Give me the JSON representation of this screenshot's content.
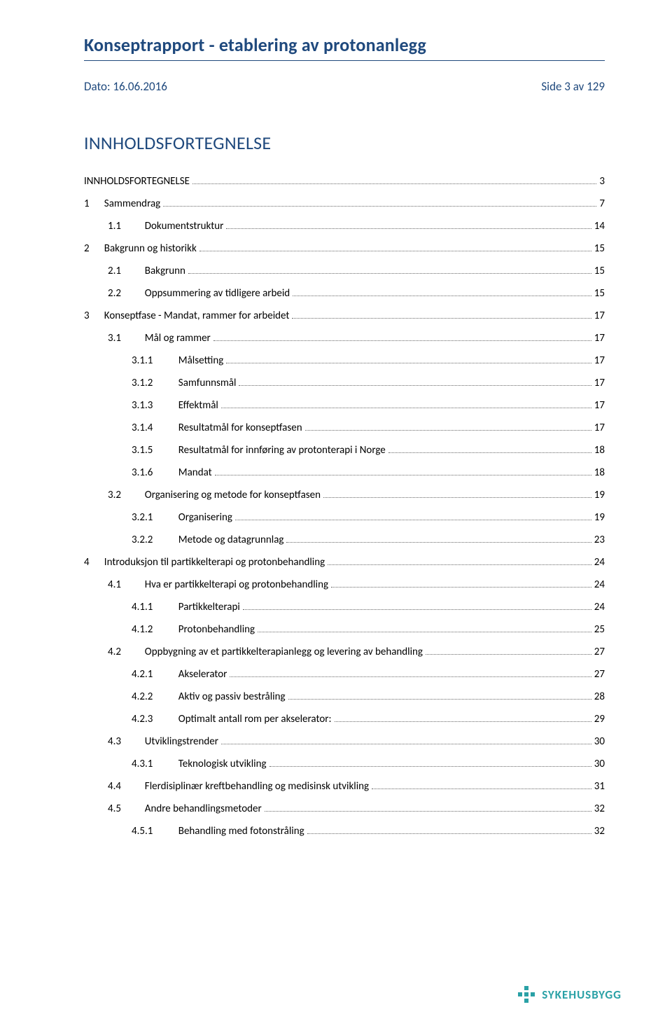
{
  "document": {
    "title": "Konseptrapport - etablering av protonanlegg",
    "date_label": "Dato: 16.06.2016",
    "page_label": "Side 3 av 129"
  },
  "toc": {
    "heading": "INNHOLDSFORTEGNELSE",
    "entries": [
      {
        "level": 0,
        "num": "",
        "text": "INNHOLDSFORTEGNELSE",
        "page": "3"
      },
      {
        "level": 0,
        "num": "1",
        "text": "Sammendrag",
        "page": "7"
      },
      {
        "level": 1,
        "num": "1.1",
        "text": "Dokumentstruktur",
        "page": "14"
      },
      {
        "level": 0,
        "num": "2",
        "text": "Bakgrunn og historikk",
        "page": "15"
      },
      {
        "level": 1,
        "num": "2.1",
        "text": "Bakgrunn",
        "page": "15"
      },
      {
        "level": 1,
        "num": "2.2",
        "text": "Oppsummering av tidligere arbeid",
        "page": "15"
      },
      {
        "level": 0,
        "num": "3",
        "text": "Konseptfase - Mandat, rammer for arbeidet",
        "page": "17"
      },
      {
        "level": 1,
        "num": "3.1",
        "text": "Mål og rammer",
        "page": "17"
      },
      {
        "level": 2,
        "num": "3.1.1",
        "text": "Målsetting",
        "page": "17"
      },
      {
        "level": 2,
        "num": "3.1.2",
        "text": "Samfunnsmål",
        "page": "17"
      },
      {
        "level": 2,
        "num": "3.1.3",
        "text": "Effektmål",
        "page": "17"
      },
      {
        "level": 2,
        "num": "3.1.4",
        "text": "Resultatmål for konseptfasen",
        "page": "17"
      },
      {
        "level": 2,
        "num": "3.1.5",
        "text": "Resultatmål for innføring av protonterapi i Norge",
        "page": "18"
      },
      {
        "level": 2,
        "num": "3.1.6",
        "text": "Mandat",
        "page": "18"
      },
      {
        "level": 1,
        "num": "3.2",
        "text": "Organisering og metode for konseptfasen",
        "page": "19"
      },
      {
        "level": 2,
        "num": "3.2.1",
        "text": "Organisering",
        "page": "19"
      },
      {
        "level": 2,
        "num": "3.2.2",
        "text": "Metode og datagrunnlag",
        "page": "23"
      },
      {
        "level": 0,
        "num": "4",
        "text": "Introduksjon til partikkelterapi og protonbehandling",
        "page": "24"
      },
      {
        "level": 1,
        "num": "4.1",
        "text": "Hva er partikkelterapi og protonbehandling",
        "page": "24"
      },
      {
        "level": 2,
        "num": "4.1.1",
        "text": "Partikkelterapi",
        "page": "24"
      },
      {
        "level": 2,
        "num": "4.1.2",
        "text": "Protonbehandling",
        "page": "25"
      },
      {
        "level": 1,
        "num": "4.2",
        "text": "Oppbygning av et partikkelterapianlegg og levering av behandling",
        "page": "27"
      },
      {
        "level": 2,
        "num": "4.2.1",
        "text": "Akselerator",
        "page": "27"
      },
      {
        "level": 2,
        "num": "4.2.2",
        "text": "Aktiv og passiv bestråling",
        "page": "28"
      },
      {
        "level": 2,
        "num": "4.2.3",
        "text": "Optimalt antall rom per akselerator:",
        "page": "29"
      },
      {
        "level": 1,
        "num": "4.3",
        "text": "Utviklingstrender",
        "page": "30"
      },
      {
        "level": 2,
        "num": "4.3.1",
        "text": "Teknologisk utvikling",
        "page": "30"
      },
      {
        "level": 1,
        "num": "4.4",
        "text": "Flerdisiplinær kreftbehandling og medisinsk utvikling",
        "page": "31"
      },
      {
        "level": 1,
        "num": "4.5",
        "text": "Andre behandlingsmetoder",
        "page": "32"
      },
      {
        "level": 2,
        "num": "4.5.1",
        "text": "Behandling med fotonstråling",
        "page": "32"
      }
    ]
  },
  "footer": {
    "logo_text": "SYKEHUSBYGG",
    "logo_color": "#2aa1a6"
  },
  "colors": {
    "heading": "#1f497d",
    "text": "#000000",
    "leader": "#666666",
    "background": "#ffffff"
  }
}
